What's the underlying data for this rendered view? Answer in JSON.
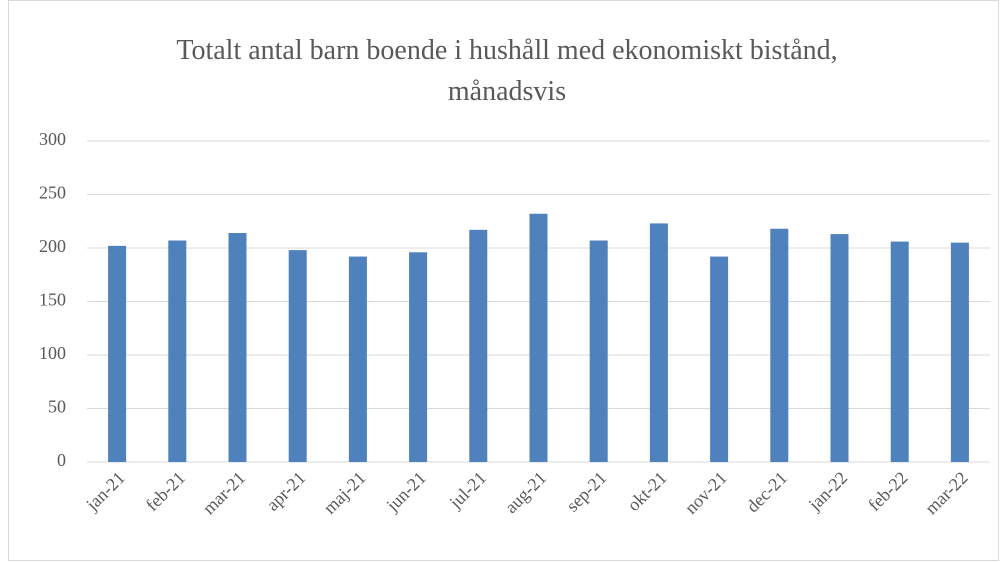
{
  "chart_data": {
    "type": "bar",
    "title": "Totalt antal barn boende i hushåll med ekonomiskt bistånd, månadsvis",
    "categories": [
      "jan-21",
      "feb-21",
      "mar-21",
      "apr-21",
      "maj-21",
      "jun-21",
      "jul-21",
      "aug-21",
      "sep-21",
      "okt-21",
      "nov-21",
      "dec-21",
      "jan-22",
      "feb-22",
      "mar-22"
    ],
    "values": [
      202,
      207,
      214,
      198,
      192,
      196,
      217,
      232,
      207,
      223,
      192,
      218,
      213,
      206,
      205
    ],
    "color": "#4f81bd",
    "ylim": [
      0,
      300
    ],
    "yticks": [
      0,
      50,
      100,
      150,
      200,
      250,
      300
    ],
    "grid": true
  }
}
